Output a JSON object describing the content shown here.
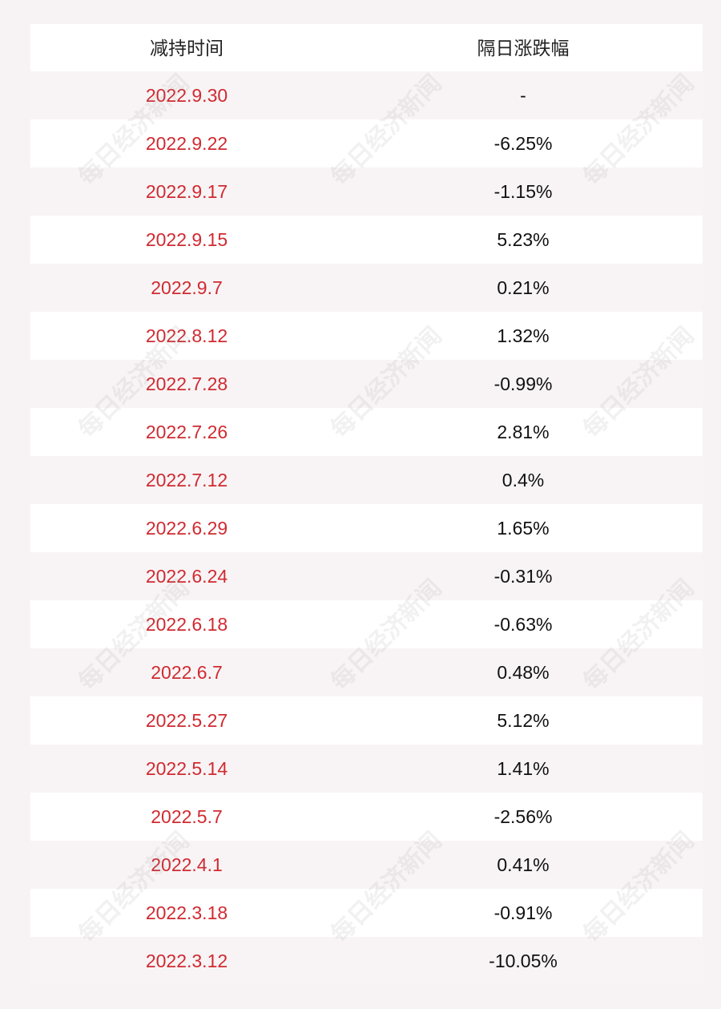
{
  "table": {
    "header": [
      "减持时间",
      "隔日涨跌幅"
    ],
    "rows": [
      [
        "2022.9.30",
        "-"
      ],
      [
        "2022.9.22",
        "-6.25%"
      ],
      [
        "2022.9.17",
        "-1.15%"
      ],
      [
        "2022.9.15",
        "5.23%"
      ],
      [
        "2022.9.7",
        "0.21%"
      ],
      [
        "2022.8.12",
        "1.32%"
      ],
      [
        "2022.7.28",
        "-0.99%"
      ],
      [
        "2022.7.26",
        "2.81%"
      ],
      [
        "2022.7.12",
        "0.4%"
      ],
      [
        "2022.6.29",
        "1.65%"
      ],
      [
        "2022.6.24",
        "-0.31%"
      ],
      [
        "2022.6.18",
        "-0.63%"
      ],
      [
        "2022.6.7",
        "0.48%"
      ],
      [
        "2022.5.27",
        "5.12%"
      ],
      [
        "2022.5.14",
        "1.41%"
      ],
      [
        "2022.5.7",
        "-2.56%"
      ],
      [
        "2022.4.1",
        "0.41%"
      ],
      [
        "2022.3.18",
        "-0.91%"
      ],
      [
        "2022.3.12",
        "-10.05%"
      ]
    ]
  },
  "watermark": "每日经济新闻"
}
